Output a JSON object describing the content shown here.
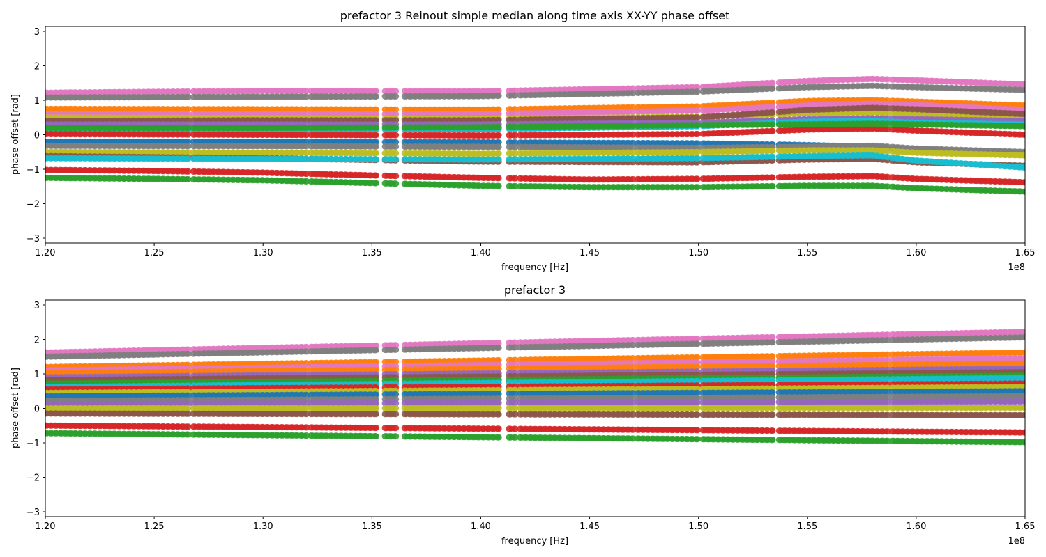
{
  "chart_data": [
    {
      "type": "scatter",
      "title": "prefactor 3 Reinout simple median along time axis XX-YY phase offset",
      "xlabel": "frequency [Hz]",
      "ylabel": "phase offset [rad]",
      "x_offset_label": "1e8",
      "xlim": [
        120000000.0,
        165000000.0
      ],
      "ylim": [
        -3.1416,
        3.1416
      ],
      "x_ticks": [
        1.2,
        1.25,
        1.3,
        1.35,
        1.4,
        1.45,
        1.5,
        1.55,
        1.6,
        1.65
      ],
      "x_tick_labels": [
        "1.20",
        "1.25",
        "1.30",
        "1.35",
        "1.40",
        "1.45",
        "1.50",
        "1.55",
        "1.60",
        "1.65"
      ],
      "y_ticks": [
        -3,
        -2,
        -1,
        0,
        1,
        2,
        3
      ],
      "y_tick_labels": [
        "−3",
        "−2",
        "−1",
        "0",
        "1",
        "2",
        "3"
      ],
      "grid": false,
      "legend": "none",
      "frequency_gaps_hz": [
        [
          126600000.0,
          126800000.0
        ],
        [
          132000000.0,
          132200000.0
        ],
        [
          135300000.0,
          135600000.0
        ],
        [
          136100000.0,
          136500000.0
        ],
        [
          140900000.0,
          141300000.0
        ],
        [
          141600000.0,
          141800000.0
        ],
        [
          147000000.0,
          147200000.0
        ],
        [
          150000000.0,
          150200000.0
        ],
        [
          153500000.0,
          153700000.0
        ],
        [
          158700000.0,
          158900000.0
        ]
      ],
      "series": [
        {
          "color": "#e377c2",
          "x": [
            120000000.0,
            130000000.0,
            140000000.0,
            150000000.0,
            155000000.0,
            158000000.0,
            160000000.0,
            165000000.0
          ],
          "y": [
            1.22,
            1.27,
            1.26,
            1.38,
            1.56,
            1.62,
            1.58,
            1.46
          ]
        },
        {
          "color": "#7f7f7f",
          "x": [
            120000000.0,
            130000000.0,
            140000000.0,
            150000000.0,
            155000000.0,
            158000000.0,
            160000000.0,
            165000000.0
          ],
          "y": [
            1.08,
            1.1,
            1.12,
            1.25,
            1.38,
            1.42,
            1.38,
            1.3
          ]
        },
        {
          "color": "#ff7f0e",
          "x": [
            120000000.0,
            130000000.0,
            140000000.0,
            150000000.0,
            155000000.0,
            158000000.0,
            160000000.0,
            165000000.0
          ],
          "y": [
            0.75,
            0.74,
            0.73,
            0.82,
            0.98,
            1.0,
            0.96,
            0.85
          ]
        },
        {
          "color": "#e377c2",
          "x": [
            120000000.0,
            130000000.0,
            140000000.0,
            150000000.0,
            155000000.0,
            158000000.0,
            160000000.0,
            165000000.0
          ],
          "y": [
            0.6,
            0.6,
            0.6,
            0.7,
            0.85,
            0.9,
            0.86,
            0.72
          ]
        },
        {
          "color": "#bcbd22",
          "x": [
            120000000.0,
            130000000.0,
            140000000.0,
            150000000.0,
            155000000.0,
            158000000.0,
            160000000.0,
            165000000.0
          ],
          "y": [
            0.5,
            0.48,
            0.46,
            0.52,
            0.62,
            0.65,
            0.6,
            0.5
          ]
        },
        {
          "color": "#8c564b",
          "x": [
            120000000.0,
            130000000.0,
            140000000.0,
            150000000.0,
            155000000.0,
            158000000.0,
            160000000.0,
            165000000.0
          ],
          "y": [
            0.4,
            0.42,
            0.42,
            0.5,
            0.72,
            0.78,
            0.74,
            0.6
          ]
        },
        {
          "color": "#9467bd",
          "x": [
            120000000.0,
            130000000.0,
            140000000.0,
            150000000.0,
            155000000.0,
            158000000.0,
            160000000.0,
            165000000.0
          ],
          "y": [
            0.3,
            0.3,
            0.3,
            0.35,
            0.45,
            0.48,
            0.45,
            0.4
          ]
        },
        {
          "color": "#17becf",
          "x": [
            120000000.0,
            130000000.0,
            140000000.0,
            150000000.0,
            155000000.0,
            158000000.0,
            160000000.0,
            165000000.0
          ],
          "y": [
            0.12,
            0.15,
            0.16,
            0.25,
            0.38,
            0.4,
            0.35,
            0.3
          ]
        },
        {
          "color": "#d62728",
          "x": [
            120000000.0,
            130000000.0,
            140000000.0,
            150000000.0,
            155000000.0,
            158000000.0,
            160000000.0,
            165000000.0
          ],
          "y": [
            0.02,
            0.0,
            -0.02,
            0.02,
            0.15,
            0.18,
            0.12,
            0.0
          ]
        },
        {
          "color": "#2ca02c",
          "x": [
            120000000.0,
            130000000.0,
            140000000.0,
            150000000.0,
            155000000.0,
            158000000.0,
            160000000.0,
            165000000.0
          ],
          "y": [
            0.2,
            0.2,
            0.22,
            0.28,
            0.3,
            0.32,
            0.3,
            0.25
          ]
        },
        {
          "color": "#1f77b4",
          "x": [
            120000000.0,
            130000000.0,
            140000000.0,
            150000000.0,
            155000000.0,
            158000000.0,
            160000000.0,
            165000000.0
          ],
          "y": [
            -0.2,
            -0.2,
            -0.22,
            -0.25,
            -0.3,
            -0.35,
            -0.45,
            -0.55
          ]
        },
        {
          "color": "#7f7f7f",
          "x": [
            120000000.0,
            130000000.0,
            140000000.0,
            150000000.0,
            155000000.0,
            158000000.0,
            160000000.0,
            165000000.0
          ],
          "y": [
            -0.32,
            -0.33,
            -0.35,
            -0.38,
            -0.35,
            -0.32,
            -0.4,
            -0.5
          ]
        },
        {
          "color": "#bcbd22",
          "x": [
            120000000.0,
            130000000.0,
            140000000.0,
            150000000.0,
            155000000.0,
            158000000.0,
            160000000.0,
            165000000.0
          ],
          "y": [
            -0.5,
            -0.52,
            -0.55,
            -0.5,
            -0.45,
            -0.45,
            -0.52,
            -0.6
          ]
        },
        {
          "color": "#8c564b",
          "x": [
            120000000.0,
            130000000.0,
            140000000.0,
            150000000.0,
            155000000.0,
            158000000.0,
            160000000.0,
            165000000.0
          ],
          "y": [
            -0.62,
            -0.68,
            -0.78,
            -0.8,
            -0.72,
            -0.7,
            -0.8,
            -0.9
          ]
        },
        {
          "color": "#17becf",
          "x": [
            120000000.0,
            130000000.0,
            140000000.0,
            150000000.0,
            155000000.0,
            158000000.0,
            160000000.0,
            165000000.0
          ],
          "y": [
            -0.68,
            -0.7,
            -0.72,
            -0.68,
            -0.62,
            -0.6,
            -0.75,
            -0.95
          ]
        },
        {
          "color": "#d62728",
          "x": [
            120000000.0,
            125000000.0,
            130000000.0,
            135000000.0,
            140000000.0,
            145000000.0,
            150000000.0,
            155000000.0,
            158000000.0,
            160000000.0,
            165000000.0
          ],
          "y": [
            -1.02,
            -1.05,
            -1.1,
            -1.18,
            -1.25,
            -1.3,
            -1.28,
            -1.22,
            -1.2,
            -1.28,
            -1.38
          ]
        },
        {
          "color": "#2ca02c",
          "x": [
            120000000.0,
            125000000.0,
            130000000.0,
            135000000.0,
            140000000.0,
            145000000.0,
            150000000.0,
            155000000.0,
            158000000.0,
            160000000.0,
            165000000.0
          ],
          "y": [
            -1.25,
            -1.28,
            -1.32,
            -1.4,
            -1.48,
            -1.52,
            -1.52,
            -1.48,
            -1.48,
            -1.55,
            -1.65
          ]
        }
      ]
    },
    {
      "type": "scatter",
      "title": "prefactor 3",
      "xlabel": "frequency [Hz]",
      "ylabel": "phase offset [rad]",
      "x_offset_label": "1e8",
      "xlim": [
        120000000.0,
        165000000.0
      ],
      "ylim": [
        -3.1416,
        3.1416
      ],
      "x_ticks": [
        1.2,
        1.25,
        1.3,
        1.35,
        1.4,
        1.45,
        1.5,
        1.55,
        1.6,
        1.65
      ],
      "x_tick_labels": [
        "1.20",
        "1.25",
        "1.30",
        "1.35",
        "1.40",
        "1.45",
        "1.50",
        "1.55",
        "1.60",
        "1.65"
      ],
      "y_ticks": [
        -3,
        -2,
        -1,
        0,
        1,
        2,
        3
      ],
      "y_tick_labels": [
        "−3",
        "−2",
        "−1",
        "0",
        "1",
        "2",
        "3"
      ],
      "grid": false,
      "legend": "none",
      "frequency_gaps_hz": [
        [
          126600000.0,
          126800000.0
        ],
        [
          132000000.0,
          132200000.0
        ],
        [
          135300000.0,
          135600000.0
        ],
        [
          136100000.0,
          136500000.0
        ],
        [
          140900000.0,
          141300000.0
        ],
        [
          141600000.0,
          141800000.0
        ],
        [
          147000000.0,
          147200000.0
        ],
        [
          150000000.0,
          150200000.0
        ],
        [
          153500000.0,
          153700000.0
        ],
        [
          158700000.0,
          158900000.0
        ]
      ],
      "series": [
        {
          "color": "#e377c2",
          "x": [
            120000000.0,
            165000000.0
          ],
          "y": [
            1.62,
            2.22
          ]
        },
        {
          "color": "#7f7f7f",
          "x": [
            120000000.0,
            165000000.0
          ],
          "y": [
            1.5,
            2.06
          ]
        },
        {
          "color": "#ff7f0e",
          "x": [
            120000000.0,
            165000000.0
          ],
          "y": [
            1.2,
            1.62
          ]
        },
        {
          "color": "#e377c2",
          "x": [
            120000000.0,
            165000000.0
          ],
          "y": [
            1.1,
            1.45
          ]
        },
        {
          "color": "#ff7f0e",
          "x": [
            120000000.0,
            165000000.0
          ],
          "y": [
            1.02,
            1.3
          ]
        },
        {
          "color": "#9467bd",
          "x": [
            120000000.0,
            165000000.0
          ],
          "y": [
            0.9,
            1.15
          ]
        },
        {
          "color": "#8c564b",
          "x": [
            120000000.0,
            165000000.0
          ],
          "y": [
            0.82,
            1.05
          ]
        },
        {
          "color": "#2ca02c",
          "x": [
            120000000.0,
            165000000.0
          ],
          "y": [
            0.72,
            0.95
          ]
        },
        {
          "color": "#17becf",
          "x": [
            120000000.0,
            165000000.0
          ],
          "y": [
            0.62,
            0.88
          ]
        },
        {
          "color": "#d62728",
          "x": [
            120000000.0,
            165000000.0
          ],
          "y": [
            0.55,
            0.72
          ]
        },
        {
          "color": "#bcbd22",
          "x": [
            120000000.0,
            165000000.0
          ],
          "y": [
            0.45,
            0.62
          ]
        },
        {
          "color": "#1f77b4",
          "x": [
            120000000.0,
            165000000.0
          ],
          "y": [
            0.35,
            0.5
          ]
        },
        {
          "color": "#7f7f7f",
          "x": [
            120000000.0,
            165000000.0
          ],
          "y": [
            0.22,
            0.35
          ]
        },
        {
          "color": "#9467bd",
          "x": [
            120000000.0,
            165000000.0
          ],
          "y": [
            0.12,
            0.2
          ]
        },
        {
          "color": "#bcbd22",
          "x": [
            120000000.0,
            165000000.0
          ],
          "y": [
            0.0,
            0.02
          ]
        },
        {
          "color": "#8c564b",
          "x": [
            120000000.0,
            165000000.0
          ],
          "y": [
            -0.15,
            -0.2
          ]
        },
        {
          "color": "#d62728",
          "x": [
            120000000.0,
            165000000.0
          ],
          "y": [
            -0.5,
            -0.7
          ]
        },
        {
          "color": "#2ca02c",
          "x": [
            120000000.0,
            165000000.0
          ],
          "y": [
            -0.72,
            -0.98
          ]
        }
      ]
    }
  ]
}
